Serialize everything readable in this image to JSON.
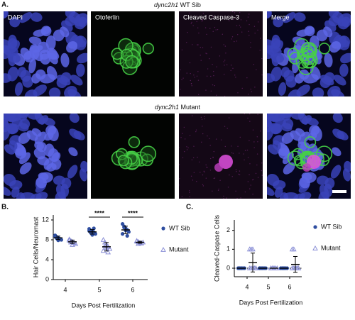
{
  "figure_a": {
    "label": "A.",
    "rows": [
      {
        "gene": "dync2h1",
        "condition": "WT Sib"
      },
      {
        "gene": "dync2h1",
        "condition": "Mutant"
      }
    ],
    "channels": [
      "DAPI",
      "Otoferlin",
      "Cleaved Caspase-3",
      "Merge"
    ]
  },
  "chart_data": [
    {
      "type": "dot",
      "panel_label": "B.",
      "ylabel": "Hair Cells/Neuromast",
      "xlabel": "Days Post Fertilization",
      "categories": [
        "4",
        "5",
        "6"
      ],
      "ylim": [
        0,
        13
      ],
      "yticks": [
        0,
        4,
        8,
        12
      ],
      "significance_labels": [
        null,
        "****",
        "****"
      ],
      "series": [
        {
          "name": "WT Sib",
          "color": "#2f4ea0",
          "marker": "circle",
          "values": [
            8.4,
            9.6,
            10.0
          ],
          "errors": [
            0.35,
            0.45,
            0.75
          ],
          "points": [
            [
              8.9,
              8.6,
              8.4,
              8.2,
              8.0,
              8.7,
              8.3,
              7.9
            ],
            [
              10.2,
              9.9,
              9.7,
              9.5,
              9.2,
              9.8,
              9.4,
              9.0,
              10.3
            ],
            [
              11.2,
              10.7,
              10.3,
              10.0,
              9.6,
              9.2,
              10.5,
              9.9,
              8.8
            ]
          ]
        },
        {
          "name": "Mutant",
          "color": "#8a8fd6",
          "marker": "triangle",
          "values": [
            7.6,
            6.6,
            7.5
          ],
          "errors": [
            0.35,
            0.85,
            0.2
          ],
          "points": [
            [
              8.1,
              7.8,
              7.6,
              7.4,
              7.2,
              7.9,
              7.5,
              7.0
            ],
            [
              8.0,
              7.5,
              7.0,
              6.6,
              6.2,
              5.8,
              6.8,
              6.4,
              5.5
            ],
            [
              7.8,
              7.6,
              7.4,
              7.3,
              7.5,
              7.7,
              7.2
            ]
          ]
        }
      ]
    },
    {
      "type": "dot",
      "panel_label": "C.",
      "ylabel": "Cleaved-Caspase Cells",
      "xlabel": "Days Post Fertilization",
      "categories": [
        "4",
        "5",
        "6"
      ],
      "ylim": [
        -0.45,
        2.55
      ],
      "yticks": [
        0,
        1,
        2
      ],
      "zero_line": true,
      "series": [
        {
          "name": "WT Sib",
          "color": "#2f4ea0",
          "marker": "circle",
          "values": [
            0,
            0,
            0
          ],
          "errors": [
            0,
            0,
            0
          ],
          "points": [
            [
              0,
              0,
              0,
              0,
              0,
              0,
              0,
              0
            ],
            [
              0,
              0,
              0,
              0,
              0,
              0,
              0,
              0
            ],
            [
              0,
              0,
              0,
              0,
              0,
              0,
              0,
              0
            ]
          ]
        },
        {
          "name": "Mutant",
          "color": "#8a8fd6",
          "marker": "triangle",
          "values": [
            0.3,
            0,
            0.2
          ],
          "errors": [
            0.5,
            0,
            0.42
          ],
          "points": [
            [
              1,
              1,
              1,
              0,
              0,
              0,
              0,
              0,
              0,
              0
            ],
            [
              0,
              0,
              0,
              0,
              0,
              0,
              0,
              0
            ],
            [
              1,
              1,
              0,
              0,
              0,
              0,
              0,
              0,
              0,
              0
            ]
          ]
        }
      ]
    }
  ]
}
